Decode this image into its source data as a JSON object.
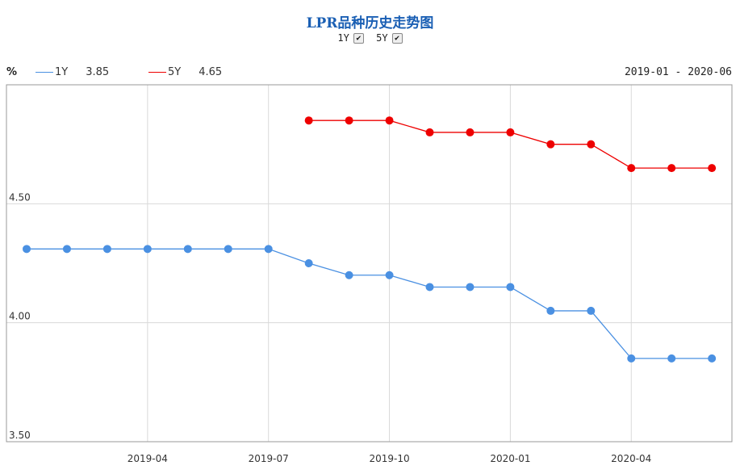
{
  "chart_data": {
    "type": "line",
    "title": "LPR品种历史走势图",
    "unit": "%",
    "date_range": "2019-01 - 2020-06",
    "x": [
      "2019-01",
      "2019-02",
      "2019-03",
      "2019-04",
      "2019-05",
      "2019-06",
      "2019-07",
      "2019-08",
      "2019-09",
      "2019-10",
      "2019-11",
      "2019-12",
      "2020-01",
      "2020-02",
      "2020-03",
      "2020-04",
      "2020-05",
      "2020-06"
    ],
    "xticks": [
      "2019-04",
      "2019-07",
      "2019-10",
      "2020-01",
      "2020-04"
    ],
    "yticks": [
      "4.50",
      "4.00",
      "3.50"
    ],
    "ylim": [
      3.5,
      5.0
    ],
    "series": [
      {
        "name": "1Y",
        "latest": "3.85",
        "color": "#4a90e2",
        "values": [
          4.31,
          4.31,
          4.31,
          4.31,
          4.31,
          4.31,
          4.31,
          4.25,
          4.2,
          4.2,
          4.15,
          4.15,
          4.15,
          4.05,
          4.05,
          3.85,
          3.85,
          3.85
        ]
      },
      {
        "name": "5Y",
        "latest": "4.65",
        "color": "#ee0000",
        "values": [
          null,
          null,
          null,
          null,
          null,
          null,
          null,
          4.85,
          4.85,
          4.85,
          4.8,
          4.8,
          4.8,
          4.75,
          4.75,
          4.65,
          4.65,
          4.65
        ]
      }
    ]
  },
  "toggles": [
    {
      "label": "1Y",
      "checked": true
    },
    {
      "label": "5Y",
      "checked": true
    }
  ]
}
